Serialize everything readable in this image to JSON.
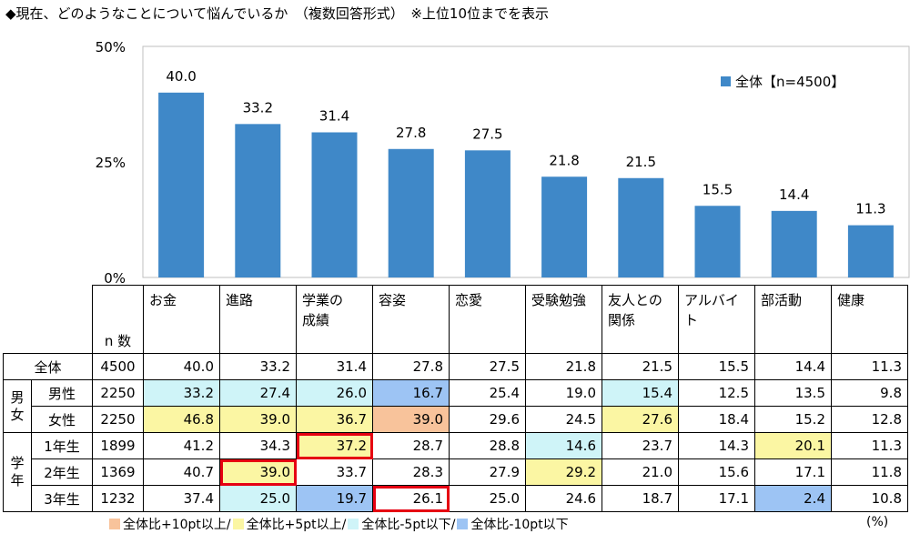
{
  "title": "◆現在、どのようなことについて悩んでいるか　（複数回答形式）　※上位10位までを表示",
  "colors": {
    "bar": "#3F88C8",
    "plus10": "#F8C39B",
    "plus5": "#FBF6A3",
    "minus5": "#CFF4F8",
    "minus10": "#9DC4F4",
    "highlight": "#E60012"
  },
  "chart_data": {
    "type": "bar",
    "categories": [
      "お金",
      "進路",
      "学業の成績",
      "容姿",
      "恋愛",
      "受験勉強",
      "友人との関係",
      "アルバイト",
      "部活動",
      "健康"
    ],
    "series": [
      {
        "name": "全体【n=4500】",
        "values": [
          40.0,
          33.2,
          31.4,
          27.8,
          27.5,
          21.8,
          21.5,
          15.5,
          14.4,
          11.3
        ]
      }
    ],
    "y_ticks": [
      "0%",
      "25%",
      "50%"
    ],
    "ylim": [
      0,
      50
    ],
    "grid": false,
    "legend_position": "top-right"
  },
  "table": {
    "n_header": "n 数",
    "category_headers": [
      [
        "お金"
      ],
      [
        "進路"
      ],
      [
        "学業の",
        "成績"
      ],
      [
        "容姿"
      ],
      [
        "恋愛"
      ],
      [
        "受験勉強"
      ],
      [
        "友人との",
        "関係"
      ],
      [
        "アルバイト"
      ],
      [
        "部活動"
      ],
      [
        "健康"
      ]
    ],
    "groups": [
      {
        "label": [
          "男",
          "女"
        ],
        "rows": [
          1,
          2
        ]
      },
      {
        "label": [
          "学",
          "年"
        ],
        "rows": [
          3,
          4,
          5
        ]
      }
    ],
    "rows": [
      {
        "label": "全体",
        "n": "4500",
        "values": [
          "40.0",
          "33.2",
          "31.4",
          "27.8",
          "27.5",
          "21.8",
          "21.5",
          "15.5",
          "14.4",
          "11.3"
        ],
        "shade": [
          "",
          "",
          "",
          "",
          "",
          "",
          "",
          "",
          "",
          ""
        ],
        "highlight": []
      },
      {
        "label": "男性",
        "n": "2250",
        "values": [
          "33.2",
          "27.4",
          "26.0",
          "16.7",
          "25.4",
          "19.0",
          "15.4",
          "12.5",
          "13.5",
          "9.8"
        ],
        "shade": [
          "m5",
          "m5",
          "m5",
          "m10",
          "",
          "",
          "m5",
          "",
          "",
          ""
        ],
        "highlight": []
      },
      {
        "label": "女性",
        "n": "2250",
        "values": [
          "46.8",
          "39.0",
          "36.7",
          "39.0",
          "29.6",
          "24.5",
          "27.6",
          "18.4",
          "15.2",
          "12.8"
        ],
        "shade": [
          "p5",
          "p5",
          "p5",
          "p10",
          "",
          "",
          "p5",
          "",
          "",
          ""
        ],
        "highlight": []
      },
      {
        "label": "1年生",
        "n": "1899",
        "values": [
          "41.2",
          "34.3",
          "37.2",
          "28.7",
          "28.8",
          "14.6",
          "23.7",
          "14.3",
          "20.1",
          "11.3"
        ],
        "shade": [
          "",
          "",
          "p5",
          "",
          "",
          "m5",
          "",
          "",
          "p5",
          ""
        ],
        "highlight": [
          2
        ]
      },
      {
        "label": "2年生",
        "n": "1369",
        "values": [
          "40.7",
          "39.0",
          "33.7",
          "28.3",
          "27.9",
          "29.2",
          "21.0",
          "15.6",
          "17.1",
          "11.8"
        ],
        "shade": [
          "",
          "p5",
          "",
          "",
          "",
          "p5",
          "",
          "",
          "",
          ""
        ],
        "highlight": [
          1
        ]
      },
      {
        "label": "3年生",
        "n": "1232",
        "values": [
          "37.4",
          "25.0",
          "19.7",
          "26.1",
          "25.0",
          "24.6",
          "18.7",
          "17.1",
          "2.4",
          "10.8"
        ],
        "shade": [
          "",
          "m5",
          "m10",
          "",
          "",
          "",
          "",
          "",
          "m10",
          ""
        ],
        "highlight": [
          3
        ]
      }
    ]
  },
  "legend_bottom": [
    {
      "key": "plus10",
      "label": "全体比+10pt以上/"
    },
    {
      "key": "plus5",
      "label": "全体比+5pt以上/"
    },
    {
      "key": "minus5",
      "label": "全体比-5pt以下/"
    },
    {
      "key": "minus10",
      "label": "全体比-10pt以下"
    }
  ],
  "unit": "(%)"
}
